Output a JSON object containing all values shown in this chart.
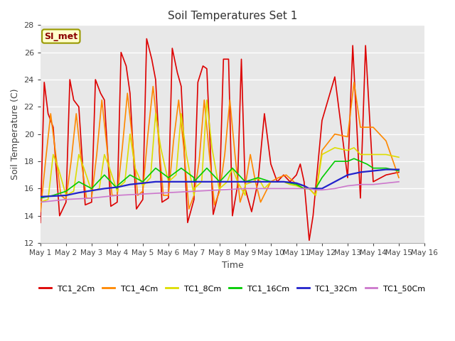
{
  "title": "Soil Temperatures Set 1",
  "xlabel": "Time",
  "ylabel": "Soil Temperature (C)",
  "ylim": [
    12,
    28
  ],
  "xlim": [
    0,
    15
  ],
  "background_color": "#e8e8e8",
  "grid_color": "white",
  "annotation_text": "SI_met",
  "annotation_box_color": "#ffffcc",
  "annotation_box_edge": "#999900",
  "annotation_text_color": "#8b0000",
  "x_tick_labels": [
    "May 1",
    "May 2",
    "May 3",
    "May 4",
    "May 5",
    "May 6",
    "May 7",
    "May 8",
    "May 9",
    "May 10",
    "May 11",
    "May 12",
    "May 13",
    "May 14",
    "May 15",
    "May 16"
  ],
  "series": {
    "TC1_2Cm": {
      "color": "#dd0000",
      "lw": 1.2,
      "data": [
        [
          0.0,
          13.5
        ],
        [
          0.15,
          23.8
        ],
        [
          0.3,
          21.5
        ],
        [
          0.5,
          20.5
        ],
        [
          0.75,
          14.0
        ],
        [
          1.0,
          15.0
        ],
        [
          1.15,
          24.0
        ],
        [
          1.3,
          22.5
        ],
        [
          1.5,
          22.0
        ],
        [
          1.75,
          14.8
        ],
        [
          2.0,
          15.0
        ],
        [
          2.15,
          24.0
        ],
        [
          2.35,
          23.0
        ],
        [
          2.5,
          22.5
        ],
        [
          2.75,
          14.7
        ],
        [
          3.0,
          15.0
        ],
        [
          3.15,
          26.0
        ],
        [
          3.35,
          25.0
        ],
        [
          3.5,
          23.0
        ],
        [
          3.75,
          14.5
        ],
        [
          4.0,
          15.2
        ],
        [
          4.15,
          27.0
        ],
        [
          4.35,
          25.5
        ],
        [
          4.5,
          24.0
        ],
        [
          4.75,
          15.0
        ],
        [
          5.0,
          15.3
        ],
        [
          5.15,
          26.3
        ],
        [
          5.35,
          24.5
        ],
        [
          5.5,
          23.5
        ],
        [
          5.75,
          13.5
        ],
        [
          6.0,
          15.2
        ],
        [
          6.15,
          23.8
        ],
        [
          6.35,
          25.0
        ],
        [
          6.5,
          24.8
        ],
        [
          6.75,
          14.1
        ],
        [
          7.0,
          16.0
        ],
        [
          7.15,
          25.5
        ],
        [
          7.35,
          25.5
        ],
        [
          7.5,
          14.0
        ],
        [
          7.7,
          16.2
        ],
        [
          7.85,
          25.5
        ],
        [
          8.0,
          16.0
        ],
        [
          8.25,
          14.3
        ],
        [
          8.5,
          16.5
        ],
        [
          8.75,
          21.5
        ],
        [
          9.0,
          17.8
        ],
        [
          9.25,
          16.5
        ],
        [
          9.5,
          17.0
        ],
        [
          9.75,
          16.5
        ],
        [
          10.0,
          17.0
        ],
        [
          10.15,
          17.8
        ],
        [
          10.3,
          16.5
        ],
        [
          10.5,
          12.2
        ],
        [
          10.65,
          14.0
        ],
        [
          11.0,
          21.0
        ],
        [
          11.5,
          24.2
        ],
        [
          12.0,
          16.8
        ],
        [
          12.2,
          26.5
        ],
        [
          12.5,
          15.3
        ],
        [
          12.7,
          26.5
        ],
        [
          13.0,
          16.5
        ],
        [
          13.5,
          17.0
        ],
        [
          14.0,
          17.2
        ]
      ]
    },
    "TC1_4Cm": {
      "color": "#ff8800",
      "lw": 1.2,
      "data": [
        [
          0.0,
          14.3
        ],
        [
          0.2,
          18.0
        ],
        [
          0.4,
          21.5
        ],
        [
          0.6,
          18.5
        ],
        [
          0.8,
          15.5
        ],
        [
          1.0,
          15.2
        ],
        [
          1.2,
          18.0
        ],
        [
          1.4,
          21.5
        ],
        [
          1.6,
          18.0
        ],
        [
          1.8,
          15.3
        ],
        [
          2.0,
          15.3
        ],
        [
          2.2,
          18.5
        ],
        [
          2.4,
          22.5
        ],
        [
          2.6,
          19.0
        ],
        [
          2.8,
          15.5
        ],
        [
          3.0,
          15.5
        ],
        [
          3.2,
          19.0
        ],
        [
          3.4,
          23.0
        ],
        [
          3.6,
          19.5
        ],
        [
          3.8,
          15.5
        ],
        [
          4.0,
          15.8
        ],
        [
          4.2,
          20.0
        ],
        [
          4.4,
          23.5
        ],
        [
          4.6,
          20.0
        ],
        [
          4.8,
          15.5
        ],
        [
          5.0,
          15.5
        ],
        [
          5.2,
          19.5
        ],
        [
          5.4,
          22.5
        ],
        [
          5.6,
          19.0
        ],
        [
          5.8,
          14.5
        ],
        [
          6.0,
          15.5
        ],
        [
          6.2,
          18.0
        ],
        [
          6.4,
          22.5
        ],
        [
          6.6,
          18.5
        ],
        [
          6.8,
          14.8
        ],
        [
          7.0,
          15.8
        ],
        [
          7.2,
          18.5
        ],
        [
          7.4,
          22.5
        ],
        [
          7.6,
          18.5
        ],
        [
          7.8,
          15.0
        ],
        [
          8.0,
          16.2
        ],
        [
          8.2,
          18.5
        ],
        [
          8.4,
          16.5
        ],
        [
          8.6,
          15.0
        ],
        [
          9.0,
          16.5
        ],
        [
          9.3,
          16.8
        ],
        [
          9.6,
          17.0
        ],
        [
          9.9,
          16.5
        ],
        [
          10.0,
          16.3
        ],
        [
          10.3,
          16.2
        ],
        [
          10.5,
          16.0
        ],
        [
          10.6,
          15.8
        ],
        [
          10.75,
          15.5
        ],
        [
          11.0,
          18.8
        ],
        [
          11.5,
          20.0
        ],
        [
          12.0,
          19.8
        ],
        [
          12.25,
          23.8
        ],
        [
          12.5,
          20.5
        ],
        [
          12.75,
          20.5
        ],
        [
          13.0,
          20.5
        ],
        [
          13.5,
          19.5
        ],
        [
          14.0,
          16.8
        ]
      ]
    },
    "TC1_8Cm": {
      "color": "#dddd00",
      "lw": 1.2,
      "data": [
        [
          0.0,
          15.0
        ],
        [
          0.3,
          15.2
        ],
        [
          0.5,
          18.5
        ],
        [
          0.7,
          17.5
        ],
        [
          1.0,
          15.5
        ],
        [
          1.0,
          15.5
        ],
        [
          1.3,
          15.8
        ],
        [
          1.5,
          18.5
        ],
        [
          1.7,
          17.5
        ],
        [
          2.0,
          15.8
        ],
        [
          2.0,
          15.8
        ],
        [
          2.3,
          16.0
        ],
        [
          2.5,
          18.5
        ],
        [
          2.7,
          17.5
        ],
        [
          3.0,
          15.8
        ],
        [
          3.0,
          16.0
        ],
        [
          3.3,
          16.5
        ],
        [
          3.5,
          20.0
        ],
        [
          3.7,
          17.5
        ],
        [
          4.0,
          16.2
        ],
        [
          4.0,
          16.2
        ],
        [
          4.3,
          16.8
        ],
        [
          4.5,
          21.5
        ],
        [
          4.7,
          19.0
        ],
        [
          5.0,
          16.5
        ],
        [
          5.0,
          16.5
        ],
        [
          5.3,
          17.0
        ],
        [
          5.5,
          21.5
        ],
        [
          5.7,
          18.5
        ],
        [
          6.0,
          15.5
        ],
        [
          6.0,
          16.0
        ],
        [
          6.3,
          16.5
        ],
        [
          6.5,
          22.5
        ],
        [
          6.7,
          19.0
        ],
        [
          7.0,
          15.8
        ],
        [
          7.0,
          16.0
        ],
        [
          7.3,
          16.5
        ],
        [
          7.5,
          17.5
        ],
        [
          7.7,
          16.5
        ],
        [
          8.0,
          15.5
        ],
        [
          8.0,
          16.3
        ],
        [
          8.3,
          16.5
        ],
        [
          8.5,
          16.8
        ],
        [
          8.75,
          16.0
        ],
        [
          9.0,
          16.5
        ],
        [
          9.25,
          16.5
        ],
        [
          9.5,
          16.5
        ],
        [
          9.75,
          16.3
        ],
        [
          10.0,
          16.2
        ],
        [
          10.3,
          16.0
        ],
        [
          10.5,
          16.0
        ],
        [
          10.6,
          15.8
        ],
        [
          10.75,
          15.5
        ],
        [
          11.0,
          18.5
        ],
        [
          11.5,
          19.0
        ],
        [
          12.0,
          18.8
        ],
        [
          12.25,
          19.0
        ],
        [
          12.5,
          18.5
        ],
        [
          12.75,
          18.5
        ],
        [
          13.0,
          18.5
        ],
        [
          13.5,
          18.5
        ],
        [
          14.0,
          18.3
        ]
      ]
    },
    "TC1_16Cm": {
      "color": "#00cc00",
      "lw": 1.2,
      "data": [
        [
          0.0,
          15.3
        ],
        [
          0.5,
          15.5
        ],
        [
          1.0,
          15.8
        ],
        [
          1.0,
          15.8
        ],
        [
          1.5,
          16.5
        ],
        [
          2.0,
          16.0
        ],
        [
          2.0,
          16.0
        ],
        [
          2.5,
          17.0
        ],
        [
          3.0,
          16.0
        ],
        [
          3.0,
          16.2
        ],
        [
          3.5,
          17.0
        ],
        [
          4.0,
          16.5
        ],
        [
          4.0,
          16.5
        ],
        [
          4.5,
          17.5
        ],
        [
          5.0,
          16.8
        ],
        [
          5.0,
          16.8
        ],
        [
          5.5,
          17.5
        ],
        [
          6.0,
          16.8
        ],
        [
          6.0,
          16.5
        ],
        [
          6.5,
          17.5
        ],
        [
          7.0,
          16.5
        ],
        [
          7.0,
          16.5
        ],
        [
          7.5,
          17.5
        ],
        [
          8.0,
          16.5
        ],
        [
          8.0,
          16.5
        ],
        [
          8.5,
          16.8
        ],
        [
          9.0,
          16.5
        ],
        [
          9.0,
          16.5
        ],
        [
          9.5,
          16.5
        ],
        [
          10.0,
          16.3
        ],
        [
          10.0,
          16.3
        ],
        [
          10.3,
          16.0
        ],
        [
          10.5,
          16.0
        ],
        [
          10.6,
          16.0
        ],
        [
          10.75,
          16.0
        ],
        [
          11.0,
          16.8
        ],
        [
          11.5,
          18.0
        ],
        [
          12.0,
          18.0
        ],
        [
          12.25,
          18.2
        ],
        [
          12.5,
          18.0
        ],
        [
          12.75,
          17.8
        ],
        [
          13.0,
          17.5
        ],
        [
          13.5,
          17.5
        ],
        [
          14.0,
          17.3
        ]
      ]
    },
    "TC1_32Cm": {
      "color": "#2222cc",
      "lw": 1.6,
      "data": [
        [
          0.0,
          15.4
        ],
        [
          0.5,
          15.45
        ],
        [
          1.0,
          15.5
        ],
        [
          1.5,
          15.7
        ],
        [
          2.0,
          15.85
        ],
        [
          2.5,
          16.0
        ],
        [
          3.0,
          16.1
        ],
        [
          3.5,
          16.3
        ],
        [
          4.0,
          16.4
        ],
        [
          4.5,
          16.5
        ],
        [
          5.0,
          16.5
        ],
        [
          5.5,
          16.5
        ],
        [
          6.0,
          16.5
        ],
        [
          6.5,
          16.5
        ],
        [
          7.0,
          16.5
        ],
        [
          7.5,
          16.5
        ],
        [
          8.0,
          16.5
        ],
        [
          8.5,
          16.5
        ],
        [
          9.0,
          16.5
        ],
        [
          9.5,
          16.5
        ],
        [
          10.0,
          16.4
        ],
        [
          10.3,
          16.2
        ],
        [
          10.5,
          16.0
        ],
        [
          10.6,
          16.0
        ],
        [
          10.75,
          16.0
        ],
        [
          11.0,
          16.0
        ],
        [
          11.5,
          16.5
        ],
        [
          12.0,
          17.0
        ],
        [
          12.5,
          17.2
        ],
        [
          13.0,
          17.3
        ],
        [
          13.5,
          17.4
        ],
        [
          14.0,
          17.4
        ]
      ]
    },
    "TC1_50Cm": {
      "color": "#cc77cc",
      "lw": 1.2,
      "data": [
        [
          0.0,
          15.0
        ],
        [
          1.0,
          15.2
        ],
        [
          2.0,
          15.3
        ],
        [
          3.0,
          15.5
        ],
        [
          4.0,
          15.6
        ],
        [
          5.0,
          15.7
        ],
        [
          6.0,
          15.8
        ],
        [
          7.0,
          15.9
        ],
        [
          8.0,
          16.0
        ],
        [
          9.0,
          16.0
        ],
        [
          10.0,
          16.0
        ],
        [
          10.5,
          16.0
        ],
        [
          10.75,
          15.9
        ],
        [
          11.0,
          15.9
        ],
        [
          11.5,
          16.0
        ],
        [
          12.0,
          16.2
        ],
        [
          12.5,
          16.3
        ],
        [
          13.0,
          16.3
        ],
        [
          13.5,
          16.4
        ],
        [
          14.0,
          16.5
        ]
      ]
    }
  },
  "legend_entries": [
    {
      "label": "TC1_2Cm",
      "color": "#dd0000"
    },
    {
      "label": "TC1_4Cm",
      "color": "#ff8800"
    },
    {
      "label": "TC1_8Cm",
      "color": "#dddd00"
    },
    {
      "label": "TC1_16Cm",
      "color": "#00cc00"
    },
    {
      "label": "TC1_32Cm",
      "color": "#2222cc"
    },
    {
      "label": "TC1_50Cm",
      "color": "#cc77cc"
    }
  ]
}
